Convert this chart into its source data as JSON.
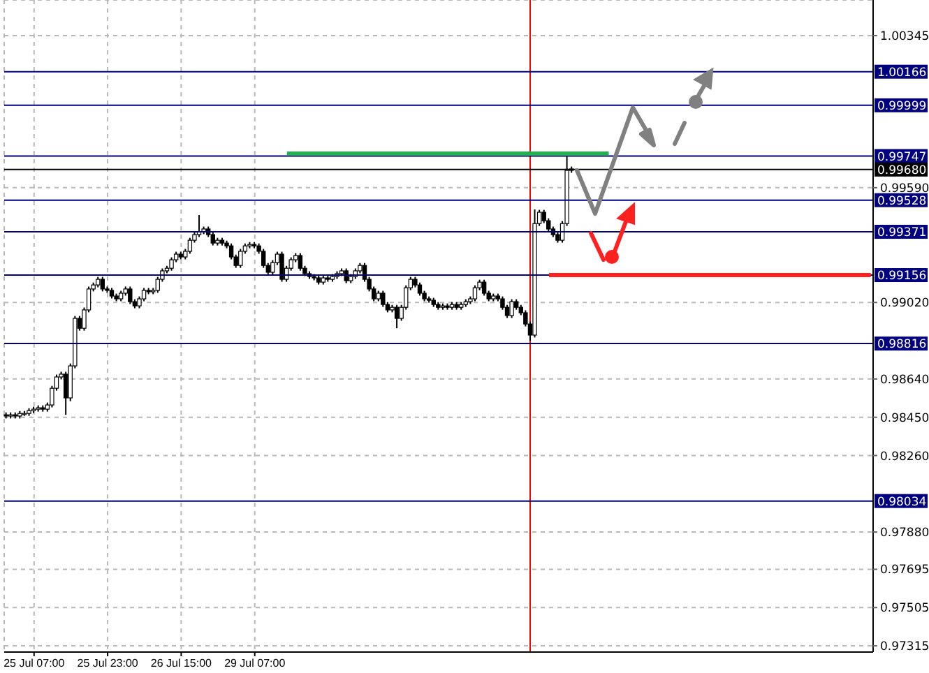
{
  "chart_data": {
    "type": "candlestick",
    "color": "#000000",
    "grid": true,
    "categories": [
      null,
      null,
      null,
      null,
      null,
      null,
      "25 Jul 07:00",
      null,
      null,
      null,
      null,
      null,
      null,
      null,
      null,
      null,
      null,
      null,
      null,
      null,
      null,
      null,
      "25 Jul 23:00",
      null,
      null,
      null,
      null,
      null,
      null,
      null,
      null,
      null,
      null,
      null,
      null,
      null,
      null,
      null,
      "26 Jul 15:00",
      null,
      null,
      null,
      null,
      null,
      null,
      null,
      null,
      null,
      null,
      null,
      null,
      null,
      null,
      null,
      "29 Jul 07:00",
      null,
      null,
      null,
      null,
      null,
      null,
      null,
      null,
      null,
      null,
      null,
      null,
      null,
      null,
      null,
      null,
      null,
      null,
      null,
      null,
      null,
      null,
      null,
      null,
      null,
      null,
      null,
      null,
      null,
      null,
      null,
      null,
      null,
      null,
      null,
      null,
      null,
      null,
      null,
      null,
      null,
      null,
      null,
      null,
      null,
      null,
      null,
      null,
      null,
      null,
      null,
      null,
      null,
      null,
      null,
      null,
      null,
      null,
      null,
      null,
      null,
      null,
      null,
      null,
      null,
      null,
      null,
      null,
      null,
      null,
      null,
      null,
      null,
      null,
      null,
      null,
      null,
      null,
      null,
      null,
      null,
      null,
      null,
      null,
      null,
      null,
      null,
      null,
      null,
      null,
      null,
      null,
      null,
      null,
      null,
      null,
      null,
      null,
      null,
      null,
      null,
      null,
      null,
      null,
      null,
      null,
      null,
      null,
      null,
      null,
      null,
      null,
      null,
      null,
      null,
      null,
      null,
      null,
      null,
      null,
      null,
      null,
      null,
      null,
      null,
      null,
      null,
      null,
      null,
      null,
      null,
      null,
      null,
      null
    ],
    "ohlc": [
      [
        0.98462,
        0.98474,
        0.98444,
        0.98456
      ],
      [
        0.98456,
        0.98474,
        0.98444,
        0.98462
      ],
      [
        0.98462,
        0.98474,
        0.98444,
        0.98456
      ],
      [
        0.98456,
        0.98481,
        0.98444,
        0.98469
      ],
      [
        0.98469,
        0.98481,
        0.98457,
        0.98469
      ],
      [
        0.98469,
        0.98495,
        0.98457,
        0.98483
      ],
      [
        0.98483,
        0.98502,
        0.98471,
        0.9849
      ],
      [
        0.9849,
        0.98509,
        0.98478,
        0.98497
      ],
      [
        0.98497,
        0.98509,
        0.98478,
        0.9849
      ],
      [
        0.9849,
        0.98523,
        0.98478,
        0.98511
      ],
      [
        0.98511,
        0.98606,
        0.98499,
        0.98594
      ],
      [
        0.98594,
        0.98662,
        0.98582,
        0.9865
      ],
      [
        0.9865,
        0.98676,
        0.98638,
        0.98664
      ],
      [
        0.98664,
        0.98676,
        0.98462,
        0.98546
      ],
      [
        0.98546,
        0.98717,
        0.9853,
        0.98705
      ],
      [
        0.98705,
        0.98953,
        0.98693,
        0.98941
      ],
      [
        0.98941,
        0.98953,
        0.9888,
        0.98892
      ],
      [
        0.98892,
        0.98995,
        0.9888,
        0.98983
      ],
      [
        0.98983,
        0.99099,
        0.98971,
        0.99087
      ],
      [
        0.99087,
        0.99119,
        0.99075,
        0.99107
      ],
      [
        0.99107,
        0.99147,
        0.99095,
        0.99135
      ],
      [
        0.99135,
        0.99147,
        0.99075,
        0.99087
      ],
      [
        0.99087,
        0.99099,
        0.99068,
        0.9908
      ],
      [
        0.9908,
        0.99092,
        0.9904,
        0.99052
      ],
      [
        0.99052,
        0.99064,
        0.99026,
        0.99038
      ],
      [
        0.99038,
        0.99078,
        0.99026,
        0.99066
      ],
      [
        0.99066,
        0.99099,
        0.99054,
        0.99087
      ],
      [
        0.99087,
        0.99099,
        0.99012,
        0.99024
      ],
      [
        0.99024,
        0.99036,
        0.98991,
        0.99003
      ],
      [
        0.99003,
        0.9905,
        0.98991,
        0.99038
      ],
      [
        0.99038,
        0.99092,
        0.99026,
        0.9908
      ],
      [
        0.9908,
        0.99092,
        0.99061,
        0.99073
      ],
      [
        0.99073,
        0.99092,
        0.99061,
        0.9908
      ],
      [
        0.9908,
        0.99147,
        0.99068,
        0.99135
      ],
      [
        0.99135,
        0.99189,
        0.99123,
        0.99177
      ],
      [
        0.99177,
        0.99202,
        0.99165,
        0.9919
      ],
      [
        0.9919,
        0.99244,
        0.99178,
        0.99232
      ],
      [
        0.99232,
        0.99272,
        0.9922,
        0.9926
      ],
      [
        0.9926,
        0.99272,
        0.99234,
        0.99246
      ],
      [
        0.99246,
        0.99286,
        0.99234,
        0.99274
      ],
      [
        0.99274,
        0.99341,
        0.99262,
        0.99329
      ],
      [
        0.99329,
        0.99369,
        0.99317,
        0.99357
      ],
      [
        0.99357,
        0.99454,
        0.99345,
        0.99371
      ],
      [
        0.99371,
        0.99397,
        0.99359,
        0.99385
      ],
      [
        0.99385,
        0.99397,
        0.99345,
        0.99357
      ],
      [
        0.99357,
        0.99369,
        0.99303,
        0.99315
      ],
      [
        0.99315,
        0.99341,
        0.99303,
        0.99329
      ],
      [
        0.99329,
        0.99341,
        0.99303,
        0.99315
      ],
      [
        0.99315,
        0.99327,
        0.99289,
        0.99301
      ],
      [
        0.99301,
        0.99313,
        0.99234,
        0.99246
      ],
      [
        0.99246,
        0.99258,
        0.99192,
        0.99204
      ],
      [
        0.99204,
        0.99286,
        0.99192,
        0.99274
      ],
      [
        0.99274,
        0.99313,
        0.99262,
        0.99301
      ],
      [
        0.99301,
        0.9932,
        0.99289,
        0.99308
      ],
      [
        0.99308,
        0.9932,
        0.99289,
        0.99301
      ],
      [
        0.99301,
        0.99313,
        0.99262,
        0.99274
      ],
      [
        0.99274,
        0.99286,
        0.99192,
        0.99204
      ],
      [
        0.99204,
        0.99216,
        0.99158,
        0.9917
      ],
      [
        0.9917,
        0.9923,
        0.99158,
        0.99218
      ],
      [
        0.99218,
        0.99272,
        0.99206,
        0.9926
      ],
      [
        0.9926,
        0.99272,
        0.99123,
        0.99135
      ],
      [
        0.99135,
        0.99202,
        0.99123,
        0.9919
      ],
      [
        0.9919,
        0.99244,
        0.99178,
        0.99232
      ],
      [
        0.99232,
        0.99265,
        0.9922,
        0.99253
      ],
      [
        0.99253,
        0.99265,
        0.99178,
        0.9919
      ],
      [
        0.9919,
        0.99202,
        0.99151,
        0.99163
      ],
      [
        0.99163,
        0.99175,
        0.99137,
        0.99149
      ],
      [
        0.99149,
        0.99161,
        0.9913,
        0.99142
      ],
      [
        0.99142,
        0.99154,
        0.99109,
        0.99121
      ],
      [
        0.99121,
        0.99154,
        0.99109,
        0.99142
      ],
      [
        0.99142,
        0.99154,
        0.99123,
        0.99135
      ],
      [
        0.99135,
        0.99161,
        0.99123,
        0.99149
      ],
      [
        0.99149,
        0.99175,
        0.99137,
        0.99163
      ],
      [
        0.99163,
        0.99189,
        0.99151,
        0.99177
      ],
      [
        0.99177,
        0.99189,
        0.99116,
        0.99128
      ],
      [
        0.99128,
        0.99161,
        0.99116,
        0.99149
      ],
      [
        0.99149,
        0.99189,
        0.99137,
        0.99177
      ],
      [
        0.99177,
        0.99216,
        0.99165,
        0.99204
      ],
      [
        0.99204,
        0.99216,
        0.99123,
        0.99135
      ],
      [
        0.99135,
        0.99147,
        0.99075,
        0.99087
      ],
      [
        0.99087,
        0.99099,
        0.99026,
        0.99038
      ],
      [
        0.99038,
        0.99078,
        0.99026,
        0.99066
      ],
      [
        0.99066,
        0.99078,
        0.98998,
        0.9901
      ],
      [
        0.9901,
        0.99022,
        0.98971,
        0.98983
      ],
      [
        0.98983,
        0.99008,
        0.98971,
        0.98996
      ],
      [
        0.98996,
        0.99008,
        0.98892,
        0.98941
      ],
      [
        0.98941,
        0.99008,
        0.98929,
        0.98996
      ],
      [
        0.98996,
        0.99105,
        0.98984,
        0.99093
      ],
      [
        0.99093,
        0.99147,
        0.99081,
        0.99135
      ],
      [
        0.99135,
        0.99147,
        0.99095,
        0.99107
      ],
      [
        0.99107,
        0.99119,
        0.99054,
        0.99066
      ],
      [
        0.99066,
        0.99078,
        0.99026,
        0.99038
      ],
      [
        0.99038,
        0.9905,
        0.99019,
        0.99031
      ],
      [
        0.99031,
        0.99043,
        0.98998,
        0.9901
      ],
      [
        0.9901,
        0.99022,
        0.98984,
        0.98996
      ],
      [
        0.98996,
        0.99015,
        0.98984,
        0.99003
      ],
      [
        0.99003,
        0.99015,
        0.98984,
        0.98996
      ],
      [
        0.98996,
        0.99022,
        0.98984,
        0.9901
      ],
      [
        0.9901,
        0.99022,
        0.98984,
        0.98996
      ],
      [
        0.98996,
        0.99022,
        0.98984,
        0.9901
      ],
      [
        0.9901,
        0.99036,
        0.98998,
        0.99024
      ],
      [
        0.99024,
        0.9905,
        0.99012,
        0.99038
      ],
      [
        0.99038,
        0.99105,
        0.99026,
        0.99093
      ],
      [
        0.99093,
        0.99133,
        0.99081,
        0.99121
      ],
      [
        0.99121,
        0.99133,
        0.99054,
        0.99066
      ],
      [
        0.99066,
        0.99078,
        0.99026,
        0.99038
      ],
      [
        0.99038,
        0.99064,
        0.99026,
        0.99052
      ],
      [
        0.99052,
        0.99064,
        0.99026,
        0.99038
      ],
      [
        0.99038,
        0.9905,
        0.98984,
        0.98996
      ],
      [
        0.98996,
        0.99008,
        0.98943,
        0.98955
      ],
      [
        0.98955,
        0.99036,
        0.98943,
        0.99024
      ],
      [
        0.99024,
        0.99036,
        0.98984,
        0.98996
      ],
      [
        0.98996,
        0.99008,
        0.98957,
        0.98969
      ],
      [
        0.98969,
        0.98981,
        0.98901,
        0.98913
      ],
      [
        0.98913,
        0.98925,
        0.9883,
        0.98858
      ],
      [
        0.98858,
        0.99482,
        0.98846,
        0.99412
      ],
      [
        0.99412,
        0.9948,
        0.994,
        0.99468
      ],
      [
        0.99468,
        0.9948,
        0.99414,
        0.99426
      ],
      [
        0.99426,
        0.99438,
        0.99373,
        0.99385
      ],
      [
        0.99385,
        0.99397,
        0.99345,
        0.99357
      ],
      [
        0.99357,
        0.99369,
        0.99317,
        0.99329
      ],
      [
        0.99329,
        0.99424,
        0.99317,
        0.99412
      ],
      [
        0.99412,
        0.99745,
        0.994,
        0.99676
      ],
      [
        0.99676,
        0.99695,
        0.99664,
        0.99683
      ],
      null,
      null,
      null,
      null,
      null,
      null,
      null,
      null,
      null,
      null,
      null,
      null,
      null,
      null,
      null,
      null,
      null,
      null,
      null,
      null,
      null,
      null,
      null,
      null,
      null,
      null,
      null,
      null,
      null,
      null,
      null,
      null,
      null,
      null,
      null,
      null,
      null,
      null,
      null,
      null,
      null,
      null,
      null,
      null,
      null,
      null,
      null,
      null,
      null,
      null,
      null,
      null,
      null,
      null,
      null,
      null,
      null,
      null,
      null,
      null,
      null,
      null,
      null,
      null,
      null
    ],
    "series": [
      {
        "type": "line",
        "color": "#22b14c",
        "values": [
          null,
          null,
          null,
          null,
          null,
          null,
          null,
          null,
          null,
          null,
          null,
          null,
          null,
          null,
          null,
          null,
          null,
          null,
          null,
          null,
          null,
          null,
          null,
          null,
          null,
          null,
          null,
          null,
          null,
          null,
          null,
          null,
          null,
          null,
          null,
          null,
          null,
          null,
          null,
          null,
          null,
          null,
          null,
          null,
          null,
          null,
          null,
          null,
          null,
          null,
          null,
          null,
          null,
          null,
          null,
          null,
          null,
          null,
          null,
          null,
          null,
          0.99759,
          0.99759,
          0.99759,
          0.99759,
          0.99759,
          0.99759,
          0.99759,
          0.99759,
          0.99759,
          0.99759,
          0.99759,
          0.99759,
          0.99759,
          0.99759,
          0.99759,
          0.99759,
          0.99759,
          0.99759,
          0.99759,
          0.99759,
          0.99759,
          0.99759,
          0.99759,
          0.99759,
          0.99759,
          0.99759,
          0.99759,
          0.99759,
          0.99759,
          0.99759,
          0.99759,
          0.99759,
          0.99759,
          0.99759,
          0.99759,
          0.99759,
          0.99759,
          0.99759,
          0.99759,
          0.99759,
          0.99759,
          0.99759,
          0.99759,
          0.99759,
          0.99759,
          0.99759,
          0.99759,
          0.99759,
          0.99759,
          0.99759,
          0.99759,
          0.99759,
          0.99759,
          0.99759,
          0.99759,
          0.99759,
          0.99759,
          0.99759,
          0.99759,
          0.99759,
          0.99759,
          0.99759,
          0.99759,
          0.99759,
          0.99759,
          0.99759,
          0.99759,
          0.99759,
          0.99759,
          0.99759,
          0.99759,
          null,
          null,
          null,
          null,
          null,
          null,
          null,
          null,
          null,
          null,
          null,
          null,
          null,
          null,
          null,
          null,
          null,
          null,
          null,
          null,
          null,
          null,
          null,
          null,
          null,
          null,
          null,
          null,
          null,
          null,
          null,
          null,
          null,
          null,
          null,
          null,
          null,
          null,
          null,
          null,
          null,
          null,
          null,
          null,
          null,
          null,
          null,
          null,
          null,
          null,
          null,
          null,
          null,
          null,
          null,
          null,
          null
        ]
      },
      {
        "type": "line",
        "color": "#ff2020",
        "values": [
          null,
          null,
          null,
          null,
          null,
          null,
          null,
          null,
          null,
          null,
          null,
          null,
          null,
          null,
          null,
          null,
          null,
          null,
          null,
          null,
          null,
          null,
          null,
          null,
          null,
          null,
          null,
          null,
          null,
          null,
          null,
          null,
          null,
          null,
          null,
          null,
          null,
          null,
          null,
          null,
          null,
          null,
          null,
          null,
          null,
          null,
          null,
          null,
          null,
          null,
          null,
          null,
          null,
          null,
          null,
          null,
          null,
          null,
          null,
          null,
          null,
          null,
          null,
          null,
          null,
          null,
          null,
          null,
          null,
          null,
          null,
          null,
          null,
          null,
          null,
          null,
          null,
          null,
          null,
          null,
          null,
          null,
          null,
          null,
          null,
          null,
          null,
          null,
          null,
          null,
          null,
          null,
          null,
          null,
          null,
          null,
          null,
          null,
          null,
          null,
          null,
          null,
          null,
          null,
          null,
          null,
          null,
          null,
          null,
          null,
          null,
          null,
          null,
          null,
          null,
          null,
          null,
          null,
          0.99156,
          0.99156,
          0.99156,
          0.99156,
          0.99156,
          0.99156,
          0.99156,
          0.99156,
          0.99156,
          0.99156,
          0.99156,
          0.99156,
          0.99156,
          0.99156,
          0.99156,
          0.99156,
          0.99156,
          0.99156,
          0.99156,
          0.99156,
          0.99156,
          0.99156,
          0.99156,
          0.99156,
          0.99156,
          0.99156,
          0.99156,
          0.99156,
          0.99156,
          0.99156,
          0.99156,
          0.99156,
          0.99156,
          0.99156,
          0.99156,
          0.99156,
          0.99156,
          0.99156,
          0.99156,
          0.99156,
          0.99156,
          0.99156,
          0.99156,
          0.99156,
          0.99156,
          0.99156,
          0.99156,
          0.99156,
          0.99156,
          0.99156,
          0.99156,
          0.99156,
          0.99156,
          0.99156,
          0.99156,
          0.99156,
          0.99156,
          0.99156,
          0.99156,
          0.99156,
          0.99156,
          0.99156,
          0.99156,
          0.99156,
          0.99156,
          0.99156,
          0.99156,
          0.99156,
          0.99156,
          0.99156,
          0.99156
        ]
      }
    ],
    "ylim": [
      0.97284,
      1.00522
    ],
    "yticks": [
      1.00345,
      {
        "value": 0.9959,
        "label": "0.99590"
      },
      {
        "value": 0.9902,
        "label": "0.99020"
      },
      {
        "value": 0.9864,
        "label": "0.98640"
      },
      {
        "value": 0.9845,
        "label": "0.98450"
      },
      {
        "value": 0.9826,
        "label": "0.98260"
      },
      {
        "value": 0.9788,
        "label": "0.97880"
      },
      0.97695,
      0.97505,
      0.97315
    ],
    "ref_lines": [
      {
        "axis": "y",
        "value": 1.00166,
        "label": "1.00166",
        "color": "#000080"
      },
      {
        "axis": "y",
        "value": 0.99999,
        "label": "0.99999",
        "color": "#000080"
      },
      {
        "axis": "y",
        "value": 0.99747,
        "label": "0.99747",
        "color": "#000080"
      },
      {
        "axis": "y",
        "value": 0.9968,
        "label": "0.99680",
        "color": "#000000"
      },
      {
        "axis": "y",
        "value": 0.99528,
        "label": "0.99528",
        "color": "#000080"
      },
      {
        "axis": "y",
        "value": 0.99371,
        "label": "0.99371",
        "color": "#000080"
      },
      {
        "axis": "y",
        "value": 0.99156,
        "label": "0.99156",
        "color": "#000080"
      },
      {
        "axis": "y",
        "value": 0.98816,
        "label": "0.98816",
        "color": "#000080"
      },
      {
        "axis": "y",
        "value": 0.98034,
        "label": "0.98034",
        "color": "#000080"
      }
    ]
  }
}
